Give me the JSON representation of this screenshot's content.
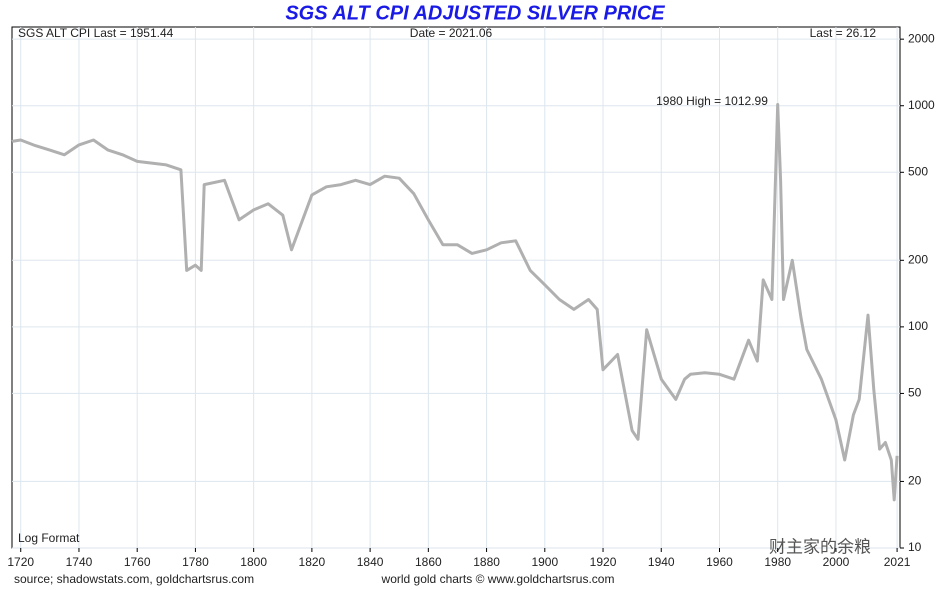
{
  "chart_data": {
    "type": "line",
    "title": "SGS ALT CPI ADJUSTED SILVER PRICE",
    "annotations": {
      "left": "SGS ALT CPI Last = 1951.44",
      "center": "Date = 2021.06",
      "right": "Last = 26.12",
      "high": "1980 High = 1012.99",
      "format": "Log Format"
    },
    "footer": {
      "source": "source; shadowstats.com, goldchartsrus.com",
      "credit": "world gold charts © www.goldchartsrus.com"
    },
    "watermark": "财主家的余粮",
    "log_scale": true,
    "grid": true,
    "xlim": [
      1717,
      2022
    ],
    "xticks": [
      1720,
      1740,
      1760,
      1780,
      1800,
      1820,
      1840,
      1860,
      1880,
      1900,
      1920,
      1940,
      1960,
      1980,
      2000,
      2021
    ],
    "ylim": [
      10,
      2270
    ],
    "yticks": [
      10,
      20,
      50,
      100,
      200,
      500,
      1000,
      2000
    ],
    "x": [
      1717,
      1720,
      1725,
      1730,
      1735,
      1740,
      1745,
      1750,
      1755,
      1760,
      1765,
      1770,
      1775,
      1777,
      1780,
      1782,
      1783,
      1790,
      1795,
      1800,
      1805,
      1810,
      1813,
      1820,
      1825,
      1830,
      1835,
      1840,
      1845,
      1850,
      1855,
      1860,
      1865,
      1870,
      1875,
      1880,
      1885,
      1890,
      1895,
      1900,
      1905,
      1910,
      1915,
      1918,
      1920,
      1925,
      1930,
      1932,
      1935,
      1940,
      1945,
      1948,
      1950,
      1955,
      1960,
      1965,
      1970,
      1973,
      1975,
      1978,
      1980,
      1981,
      1982,
      1985,
      1988,
      1990,
      1995,
      2000,
      2003,
      2006,
      2008,
      2011,
      2013,
      2015,
      2017,
      2019,
      2020,
      2021
    ],
    "series": [
      {
        "name": "SGS ALT CPI Adjusted Silver Price",
        "color": "#b0b0b0",
        "values": [
          690,
          700,
          660,
          630,
          600,
          665,
          700,
          630,
          600,
          560,
          550,
          540,
          513,
          180,
          190,
          180,
          440,
          460,
          305,
          338,
          360,
          320,
          223,
          395,
          430,
          440,
          460,
          440,
          480,
          470,
          400,
          305,
          235,
          235,
          215,
          223,
          240,
          245,
          180,
          155,
          133,
          120,
          133,
          120,
          64,
          75,
          34,
          31,
          97,
          58,
          47,
          58,
          61,
          62,
          61,
          58,
          87,
          70,
          163,
          133,
          1013,
          460,
          133,
          200,
          110,
          79,
          58,
          38,
          25,
          40,
          47,
          113,
          52,
          28,
          30,
          25,
          16.5,
          26.12
        ]
      }
    ]
  }
}
